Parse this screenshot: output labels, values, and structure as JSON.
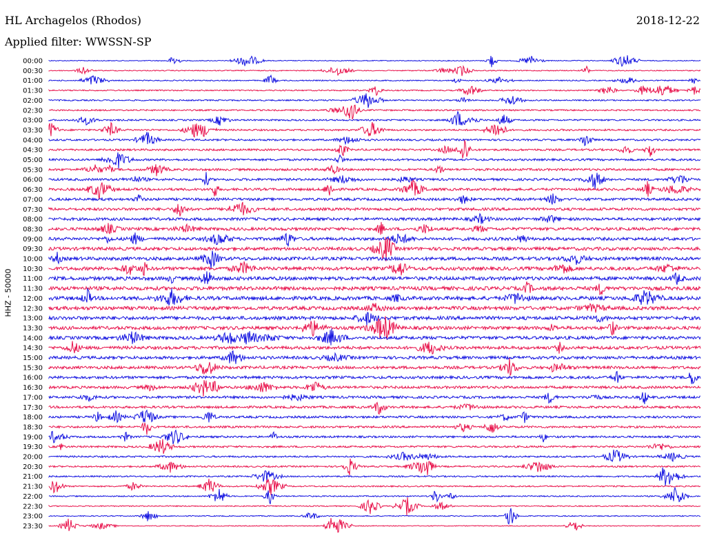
{
  "header": {
    "station": "HL Archagelos (Rhodos)",
    "filter": "Applied filter: WWSSN-SP",
    "date": "2018-12-22",
    "channel": "HHZ - 50000"
  },
  "colors": {
    "trace_a": "#1010e0",
    "trace_b": "#e8104a"
  },
  "chart_data": {
    "type": "line",
    "title": "HL Archagelos (Rhodos)",
    "subtitle": "Applied filter: WWSSN-SP",
    "ylabel": "HHZ - 50000",
    "xlabel": "",
    "date": "2018-12-22",
    "rows": [
      "00:00",
      "00:30",
      "01:00",
      "01:30",
      "02:00",
      "02:30",
      "03:00",
      "03:30",
      "04:00",
      "04:30",
      "05:00",
      "05:30",
      "06:00",
      "06:30",
      "07:00",
      "07:30",
      "08:00",
      "08:30",
      "09:00",
      "09:30",
      "10:00",
      "10:30",
      "11:00",
      "11:30",
      "12:00",
      "12:30",
      "13:00",
      "13:30",
      "14:00",
      "14:30",
      "15:00",
      "15:30",
      "16:00",
      "16:30",
      "17:00",
      "17:30",
      "18:00",
      "18:30",
      "19:00",
      "19:30",
      "20:00",
      "20:30",
      "21:00",
      "21:30",
      "22:00",
      "22:30",
      "23:00",
      "23:30"
    ],
    "series_colors": [
      "#1010e0",
      "#e8104a"
    ],
    "grid": false,
    "legend": "none"
  }
}
